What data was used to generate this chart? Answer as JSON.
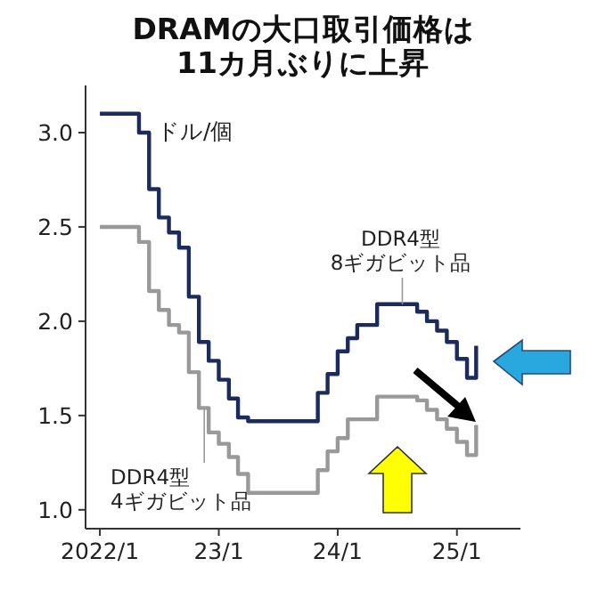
{
  "chart_data": {
    "type": "step",
    "title": "DRAMの大口取引価格は\n11カ月ぶりに上昇",
    "ylabel": "ドル/個",
    "x": [
      "2022-01",
      "2022-02",
      "2022-03",
      "2022-04",
      "2022-05",
      "2022-06",
      "2022-07",
      "2022-08",
      "2022-09",
      "2022-10",
      "2022-11",
      "2022-12",
      "2023-01",
      "2023-02",
      "2023-03",
      "2023-04",
      "2023-05",
      "2023-06",
      "2023-07",
      "2023-08",
      "2023-09",
      "2023-10",
      "2023-11",
      "2023-12",
      "2024-01",
      "2024-02",
      "2024-03",
      "2024-04",
      "2024-05",
      "2024-06",
      "2024-07",
      "2024-08",
      "2024-09",
      "2024-10",
      "2024-11",
      "2024-12",
      "2025-01",
      "2025-02",
      "2025-03"
    ],
    "series": [
      {
        "name": "DDR4型\n8ギガビット品",
        "color": "#1b2b5e",
        "values": [
          3.1,
          3.1,
          3.1,
          3.1,
          3.0,
          2.7,
          2.55,
          2.47,
          2.39,
          2.13,
          1.89,
          1.79,
          1.69,
          1.59,
          1.49,
          1.47,
          1.47,
          1.47,
          1.47,
          1.47,
          1.47,
          1.47,
          1.62,
          1.72,
          1.84,
          1.91,
          1.98,
          1.98,
          2.09,
          2.09,
          2.09,
          2.09,
          2.05,
          2.0,
          1.95,
          1.89,
          1.8,
          1.7,
          1.87
        ]
      },
      {
        "name": "DDR4型\n4ギガビット品",
        "color": "#999999",
        "values": [
          2.5,
          2.5,
          2.5,
          2.5,
          2.42,
          2.16,
          2.06,
          1.98,
          1.94,
          1.73,
          1.54,
          1.41,
          1.35,
          1.28,
          1.19,
          1.09,
          1.09,
          1.09,
          1.09,
          1.09,
          1.09,
          1.09,
          1.21,
          1.31,
          1.38,
          1.48,
          1.48,
          1.48,
          1.6,
          1.6,
          1.6,
          1.6,
          1.58,
          1.53,
          1.48,
          1.43,
          1.36,
          1.29,
          1.45
        ]
      }
    ],
    "xlim": [
      "2021-11-18",
      "2025-07-15"
    ],
    "xticks": [
      {
        "value": "2022-01",
        "label": "2022/1"
      },
      {
        "value": "2023-01",
        "label": "23/1"
      },
      {
        "value": "2024-01",
        "label": "24/1"
      },
      {
        "value": "2025-01",
        "label": "25/1"
      }
    ],
    "ylim": [
      0.9,
      3.25
    ],
    "yticks": [
      {
        "value": 1.0,
        "label": "1.0"
      },
      {
        "value": 1.5,
        "label": "1.5"
      },
      {
        "value": 2.0,
        "label": "2.0"
      },
      {
        "value": 2.5,
        "label": "2.5"
      },
      {
        "value": 3.0,
        "label": "3.0"
      }
    ],
    "grid": false,
    "line_style": "solid"
  }
}
